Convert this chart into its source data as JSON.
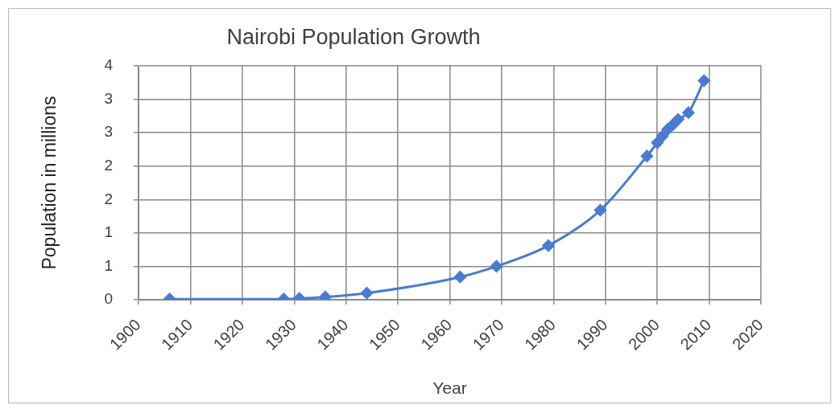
{
  "chart_data": {
    "type": "line",
    "title": "Nairobi Population Growth",
    "xlabel": "Year",
    "ylabel": "Population in millions",
    "x": [
      1906,
      1928,
      1931,
      1936,
      1944,
      1962,
      1969,
      1979,
      1989,
      1998,
      2000,
      2001,
      2002,
      2003,
      2004,
      2006,
      2009
    ],
    "values": [
      0.01,
      0.01,
      0.02,
      0.04,
      0.1,
      0.34,
      0.5,
      0.81,
      1.34,
      2.15,
      2.35,
      2.45,
      2.55,
      2.62,
      2.7,
      2.8,
      3.28
    ],
    "color": "#4a7bd0",
    "marker": "diamond",
    "grid": true,
    "xlim": [
      1900,
      2020
    ],
    "xticks": [
      1900,
      1910,
      1920,
      1930,
      1940,
      1950,
      1960,
      1970,
      1980,
      1990,
      2000,
      2010,
      2020
    ],
    "ylim": [
      0,
      3.5
    ],
    "yticks": [
      0,
      {
        "value": 0.5,
        "label": "1"
      },
      1,
      {
        "value": 1.5,
        "label": "2"
      },
      2,
      {
        "value": 2.5,
        "label": "3"
      },
      3,
      {
        "value": 3.5,
        "label": "4"
      }
    ]
  }
}
